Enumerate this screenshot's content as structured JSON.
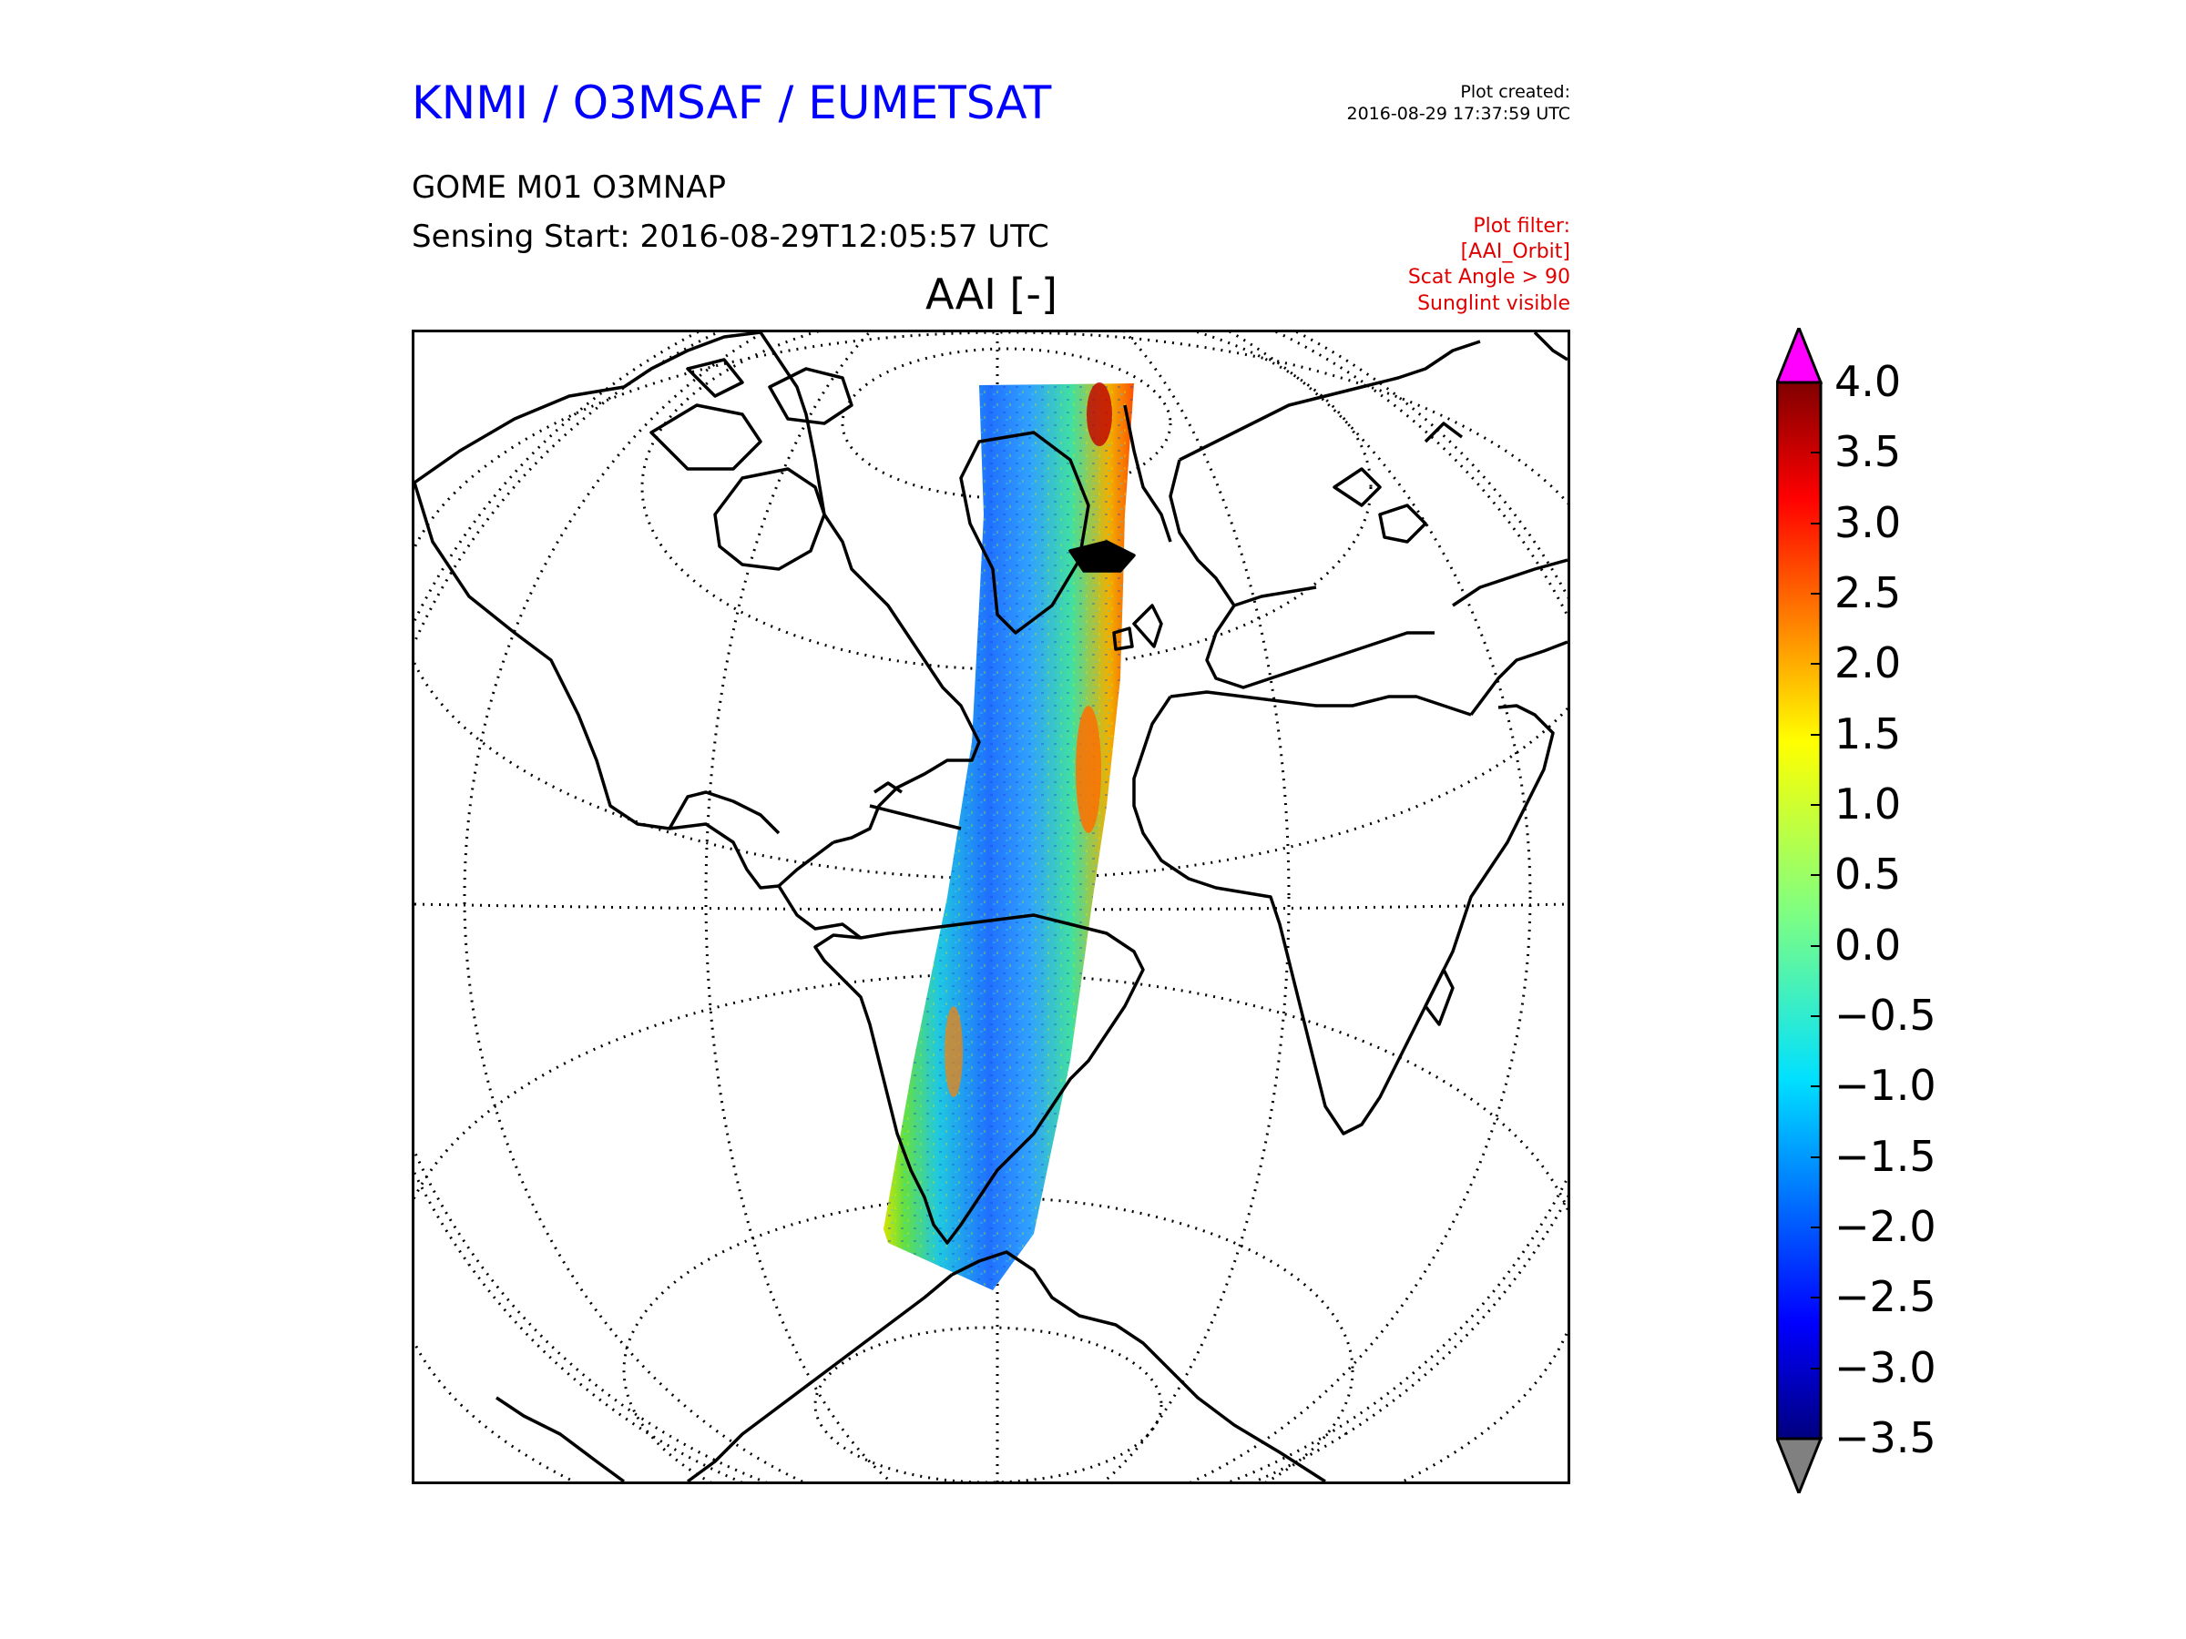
{
  "header": {
    "organization": "KNMI / O3MSAF / EUMETSAT",
    "created_label": "Plot created:",
    "created_time": "2016-08-29 17:37:59 UTC",
    "product": "GOME M01 O3MNAP",
    "sensing_start": "Sensing Start: 2016-08-29T12:05:57 UTC",
    "filter_lines": [
      "Plot filter:",
      "[AAI_Orbit]",
      "Scat Angle > 90",
      "Sunglint visible"
    ]
  },
  "map": {
    "variable_title": "AAI [-]",
    "projection": "orthographic",
    "graticule": "dotted",
    "coastlines": true,
    "swath_colormap": "jet"
  },
  "colorbar": {
    "ticks": [
      "4.0",
      "3.5",
      "3.0",
      "2.5",
      "2.0",
      "1.5",
      "1.0",
      "0.5",
      "0.0",
      "−0.5",
      "−1.0",
      "−1.5",
      "−2.0",
      "−2.5",
      "−3.0",
      "−3.5"
    ],
    "min": -3.5,
    "max": 4.0,
    "over_color": "#ff00ff",
    "under_color": "#808080"
  }
}
